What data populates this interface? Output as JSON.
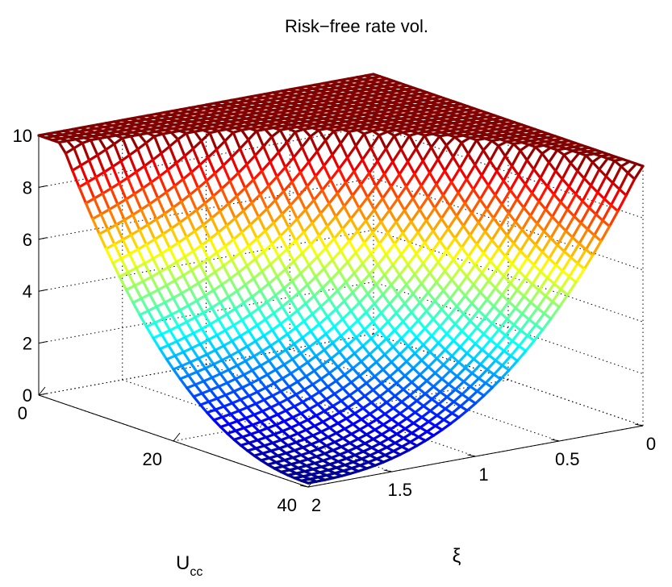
{
  "chart_data": {
    "type": "surface",
    "title": "Risk−free rate vol.",
    "x_axis": {
      "label_main": "U",
      "label_sub": "cc",
      "range": [
        0,
        40
      ],
      "ticks": [
        {
          "v": 0,
          "label": "0"
        },
        {
          "v": 20,
          "label": "20"
        },
        {
          "v": 40,
          "label": "40"
        }
      ]
    },
    "y_axis": {
      "label": "ξ",
      "range": [
        0,
        2
      ],
      "ticks": [
        {
          "v": 0,
          "label": "0"
        },
        {
          "v": 0.5,
          "label": "0.5"
        },
        {
          "v": 1,
          "label": "1"
        },
        {
          "v": 1.5,
          "label": "1.5"
        },
        {
          "v": 2,
          "label": "2"
        }
      ]
    },
    "z_axis": {
      "range": [
        0,
        10
      ],
      "ticks": [
        {
          "v": 0,
          "label": "0"
        },
        {
          "v": 2,
          "label": "2"
        },
        {
          "v": 4,
          "label": "4"
        },
        {
          "v": 6,
          "label": "6"
        },
        {
          "v": 8,
          "label": "8"
        },
        {
          "v": 10,
          "label": "10"
        }
      ]
    },
    "grid": true,
    "colormap": "jet",
    "surface": {
      "x_count": 41,
      "y_count": 41,
      "z_cap": 10,
      "description_of_values": "Approximate risk-free rate volatility; minimum ~0 near Ucc=40, xi=2, rising toward 10 (capped) as Ucc and xi decrease"
    }
  }
}
